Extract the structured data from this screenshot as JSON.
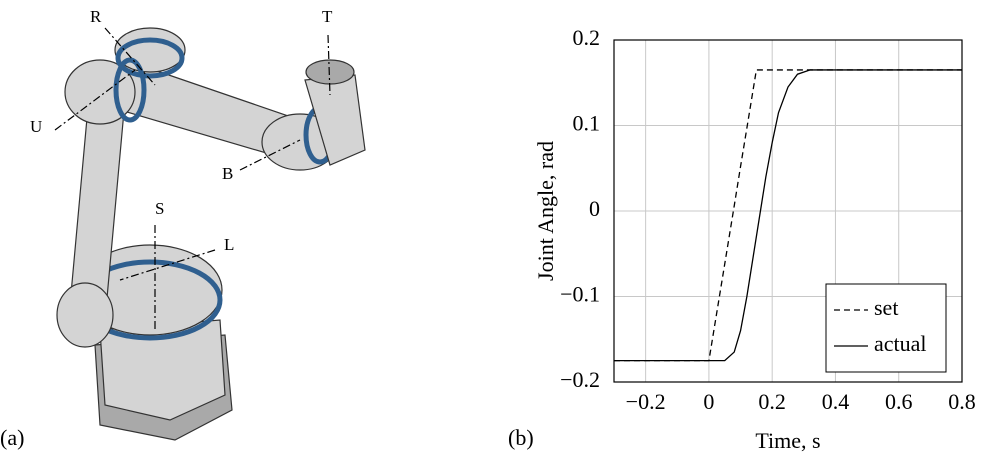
{
  "panels": {
    "a": "(a)",
    "b": "(b)"
  },
  "robot": {
    "axes": [
      "R",
      "T",
      "U",
      "B",
      "S",
      "L"
    ]
  },
  "chart_data": {
    "type": "line",
    "xlabel": "Time, s",
    "ylabel": "Joint Angle, rad",
    "x": [
      -0.3,
      0,
      0.05,
      0.08,
      0.1,
      0.12,
      0.15,
      0.18,
      0.2,
      0.22,
      0.25,
      0.28,
      0.32,
      0.8
    ],
    "series": [
      {
        "name": "set",
        "color": "#000000",
        "style": "dashed",
        "values": [
          -0.175,
          -0.175,
          -0.062,
          0.006,
          0.052,
          0.097,
          0.165,
          0.165,
          0.165,
          0.165,
          0.165,
          0.165,
          0.165,
          0.165
        ]
      },
      {
        "name": "actual",
        "color": "#000000",
        "style": "solid",
        "values": [
          -0.175,
          -0.175,
          -0.175,
          -0.165,
          -0.14,
          -0.1,
          -0.03,
          0.04,
          0.08,
          0.115,
          0.145,
          0.16,
          0.165,
          0.165
        ]
      }
    ],
    "xlim": [
      -0.3,
      0.8
    ],
    "ylim": [
      -0.2,
      0.2
    ],
    "xticks": [
      {
        "value": -0.2,
        "label": "−0.2"
      },
      0,
      0.2,
      0.4,
      0.6,
      0.8
    ],
    "yticks": [
      {
        "value": -0.2,
        "label": "−0.2"
      },
      {
        "value": -0.1,
        "label": "−0.1"
      },
      0,
      0.1,
      0.2
    ],
    "grid": true,
    "legend": "lower right"
  }
}
